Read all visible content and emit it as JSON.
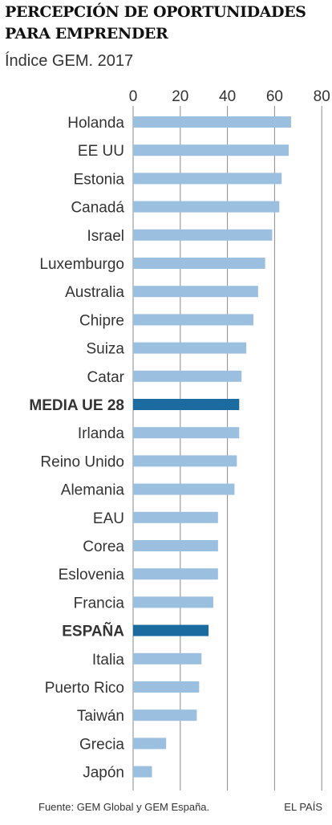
{
  "header": {
    "title": "Percepción de oportunidades para emprender",
    "subtitle": "Índice GEM. 2017"
  },
  "footer": {
    "source": "Fuente: GEM Global y GEM España.",
    "credit": "EL PAÍS"
  },
  "colors": {
    "bar": "#9bbfdf",
    "highlight": "#1b6aa0",
    "grid": "#8a8a8a",
    "text": "#333333"
  },
  "chart_data": {
    "type": "bar",
    "orientation": "horizontal",
    "title": "Percepción de oportunidades para emprender",
    "subtitle": "Índice GEM. 2017",
    "xlim": [
      0,
      80
    ],
    "xticks": [
      "0",
      "20",
      "40",
      "60",
      "80"
    ],
    "grid": true,
    "categories": [
      "Holanda",
      "EE UU",
      "Estonia",
      "Canadá",
      "Israel",
      "Luxemburgo",
      "Australia",
      "Chipre",
      "Suiza",
      "Catar",
      "MEDIA UE 28",
      "Irlanda",
      "Reino Unido",
      "Alemania",
      "EAU",
      "Corea",
      "Eslovenia",
      "Francia",
      "ESPAÑA",
      "Italia",
      "Puerto Rico",
      "Taiwán",
      "Grecia",
      "Japón"
    ],
    "values": [
      67,
      66,
      63,
      62,
      59,
      56,
      53,
      51,
      48,
      46,
      45,
      45,
      44,
      43,
      36,
      36,
      36,
      34,
      32,
      29,
      28,
      27,
      14,
      8
    ],
    "highlighted": [
      "MEDIA UE 28",
      "ESPAÑA"
    ]
  }
}
